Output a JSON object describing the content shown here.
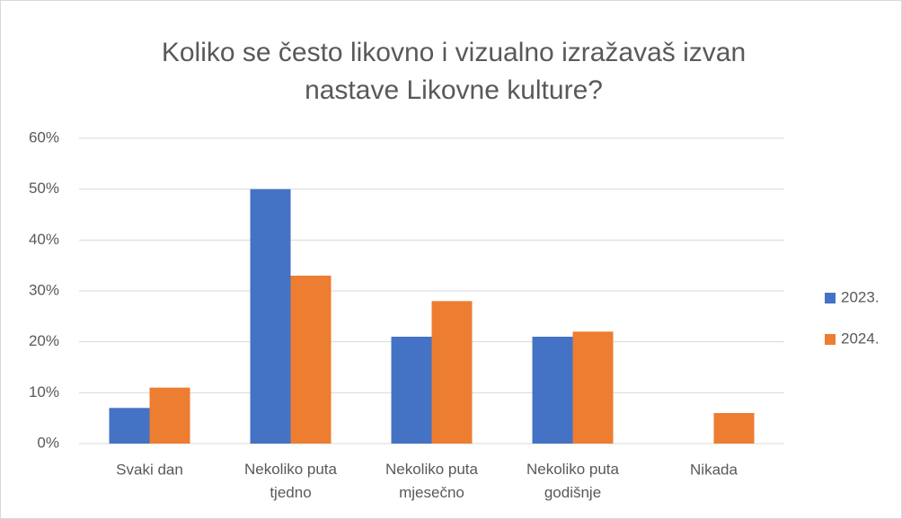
{
  "chart_data": {
    "type": "bar",
    "title": "Koliko se često likovno i vizualno izražavaš izvan nastave Likovne kulture?",
    "categories": [
      "Svaki dan",
      "Nekoliko puta tjedno",
      "Nekoliko puta mjesečno",
      "Nekoliko puta godišnje",
      "Nikada"
    ],
    "series": [
      {
        "name": "2023.",
        "color": "#4472c4",
        "values": [
          7,
          50,
          21,
          21,
          0
        ]
      },
      {
        "name": "2024.",
        "color": "#ed7d31",
        "values": [
          11,
          33,
          28,
          22,
          6
        ]
      }
    ],
    "ylim": [
      0,
      60
    ],
    "yticks": [
      {
        "value": 0,
        "label": "0%"
      },
      {
        "value": 10,
        "label": "10%"
      },
      {
        "value": 20,
        "label": "20%"
      },
      {
        "value": 30,
        "label": "30%"
      },
      {
        "value": 40,
        "label": "40%"
      },
      {
        "value": 50,
        "label": "50%"
      },
      {
        "value": 60,
        "label": "60%"
      }
    ],
    "grid": true,
    "legend": "right"
  }
}
